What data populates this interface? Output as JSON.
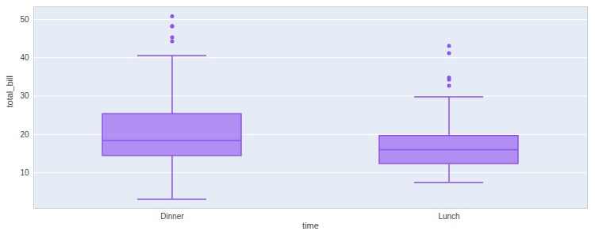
{
  "chart_data": {
    "type": "box",
    "x_label": "time",
    "y_label": "total_bill",
    "categories": [
      "Dinner",
      "Lunch"
    ],
    "color": "#8d52f0",
    "lowerfence": [
      3.07,
      7.5
    ],
    "q1": [
      14.4,
      12.3
    ],
    "median": [
      18.4,
      16.0
    ],
    "q3": [
      25.3,
      19.6
    ],
    "upperfence": [
      40.55,
      29.8
    ],
    "outliers": [
      [
        44.3,
        45.35,
        48.17,
        48.27,
        50.81
      ],
      [
        32.68,
        34.3,
        34.83,
        41.19,
        43.11
      ]
    ],
    "ylim": [
      0.7,
      53.3
    ],
    "yticks": [
      10,
      20,
      30,
      40,
      50
    ],
    "grid": true
  }
}
